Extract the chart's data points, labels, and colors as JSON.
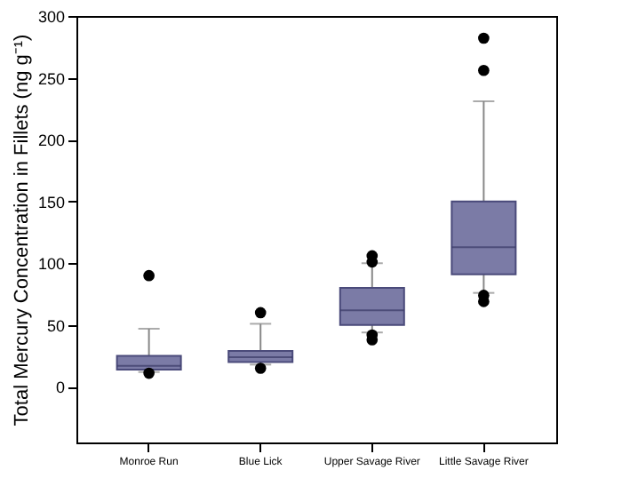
{
  "chart_data": {
    "type": "box",
    "ylabel": "Total Mercury Concentration in Fillets (ng g⁻¹)",
    "categories": [
      "Monroe Run",
      "Blue Lick",
      "Upper Savage River",
      "Little Savage River"
    ],
    "boxes": [
      {
        "low": 12,
        "q1": 14,
        "median": 17,
        "q3": 25,
        "high": 47,
        "outliers": [
          90,
          11
        ]
      },
      {
        "low": 18,
        "q1": 20,
        "median": 24,
        "q3": 29,
        "high": 51,
        "outliers": [
          60,
          15
        ]
      },
      {
        "low": 44,
        "q1": 50,
        "median": 62,
        "q3": 80,
        "high": 100,
        "outliers": [
          106,
          101,
          42,
          38
        ]
      },
      {
        "low": 76,
        "q1": 91,
        "median": 113,
        "q3": 150,
        "high": 231,
        "outliers": [
          282,
          256,
          74,
          69
        ]
      }
    ],
    "color": "#7b7ba6",
    "ylim": [
      -45,
      300
    ],
    "yticks": [
      0,
      50,
      100,
      150,
      200,
      250,
      300
    ],
    "grid": false
  }
}
